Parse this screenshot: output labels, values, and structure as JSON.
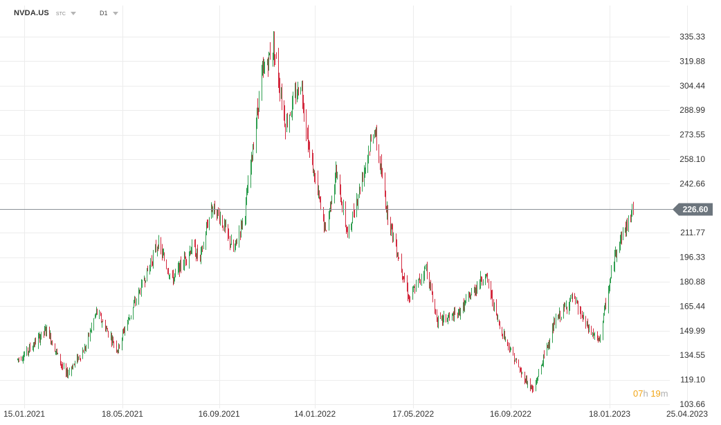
{
  "header": {
    "symbol": "NVDA.US",
    "market": "STC",
    "timeframe": "D1"
  },
  "countdown": {
    "hours": "07",
    "hours_unit": "h",
    "minutes": "19",
    "minutes_unit": "m"
  },
  "colors": {
    "up": "#2e9e4f",
    "down": "#d32a3f",
    "grid": "#ececec",
    "axis_text": "#333333",
    "price_line": "#8a9097",
    "price_tag": "#6c757d",
    "countdown": "#f2a516"
  },
  "chart_data": {
    "type": "candlestick",
    "title": "",
    "xlabel": "",
    "ylabel": "",
    "y_axis_position": "right",
    "grid": true,
    "current_price": "226.60",
    "ylim": [
      103.66,
      344.0
    ],
    "y_ticks": [
      "335.33",
      "319.88",
      "304.44",
      "288.99",
      "273.55",
      "258.10",
      "242.66",
      "226.60",
      "211.77",
      "196.33",
      "180.88",
      "165.44",
      "149.99",
      "134.55",
      "119.10",
      "103.66"
    ],
    "x_tick_labels": [
      "15.01.2021",
      "18.05.2021",
      "16.09.2021",
      "14.01.2022",
      "17.05.2022",
      "16.09.2022",
      "18.01.2023",
      "25.04.2023"
    ],
    "date_range": [
      "2021-01-06",
      "2023-02-16"
    ],
    "price_path": [
      [
        "2021-01-06",
        132
      ],
      [
        "2021-01-15",
        135
      ],
      [
        "2021-02-12",
        151
      ],
      [
        "2021-03-08",
        122
      ],
      [
        "2021-04-01",
        139
      ],
      [
        "2021-04-15",
        162
      ],
      [
        "2021-05-12",
        138
      ],
      [
        "2021-05-18",
        148
      ],
      [
        "2021-06-20",
        190
      ],
      [
        "2021-07-01",
        205
      ],
      [
        "2021-07-19",
        182
      ],
      [
        "2021-08-13",
        203
      ],
      [
        "2021-08-23",
        195
      ],
      [
        "2021-09-06",
        228
      ],
      [
        "2021-09-16",
        223
      ],
      [
        "2021-10-04",
        200
      ],
      [
        "2021-10-18",
        225
      ],
      [
        "2021-11-08",
        310
      ],
      [
        "2021-11-23",
        330
      ],
      [
        "2021-12-08",
        280
      ],
      [
        "2021-12-27",
        307
      ],
      [
        "2022-01-06",
        265
      ],
      [
        "2022-01-27",
        212
      ],
      [
        "2022-02-09",
        250
      ],
      [
        "2022-02-24",
        210
      ],
      [
        "2022-03-29",
        278
      ],
      [
        "2022-04-14",
        225
      ],
      [
        "2022-05-12",
        170
      ],
      [
        "2022-06-02",
        190
      ],
      [
        "2022-06-16",
        156
      ],
      [
        "2022-07-11",
        160
      ],
      [
        "2022-08-15",
        186
      ],
      [
        "2022-09-01",
        154
      ],
      [
        "2022-09-28",
        124
      ],
      [
        "2022-10-14",
        112
      ],
      [
        "2022-11-10",
        155
      ],
      [
        "2022-12-02",
        171
      ],
      [
        "2022-12-21",
        152
      ],
      [
        "2023-01-04",
        143
      ],
      [
        "2023-01-27",
        204
      ],
      [
        "2023-02-09",
        217
      ],
      [
        "2023-02-16",
        227
      ]
    ]
  }
}
